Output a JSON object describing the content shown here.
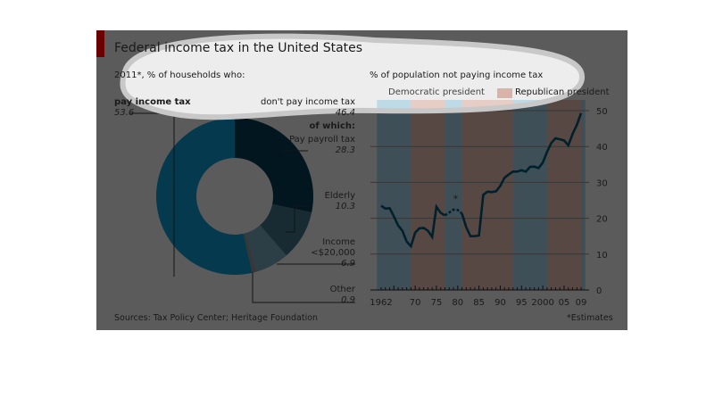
{
  "title": "Federal income tax in the United States",
  "left_subtitle": "2011*, % of households who:",
  "right_subtitle": "% of population not paying income tax",
  "source": "Sources: Tax Policy Center; Heritage Foundation",
  "footnote": "*Estimates",
  "colors": {
    "accent": "#b00000",
    "pay": "#0a8fc4",
    "payroll": "#06384e",
    "elderly": "#3d6d80",
    "income": "#6e9db0",
    "other": "#8a8a8a",
    "democratic": "#9cc6da",
    "republican": "#d9b3a8",
    "line": "#00506c"
  },
  "chart_data": [
    {
      "type": "pie",
      "variant": "donut",
      "slices": [
        {
          "label": "Pay payroll tax",
          "value": 28.3,
          "group": "don't pay income tax"
        },
        {
          "label": "Elderly",
          "value": 10.3,
          "group": "don't pay income tax"
        },
        {
          "label": "Income <$20,000",
          "value": 6.9,
          "group": "don't pay income tax"
        },
        {
          "label": "Other",
          "value": 0.9,
          "group": "don't pay income tax"
        },
        {
          "label": "pay income tax",
          "value": 53.6
        }
      ],
      "labels": {
        "pay": "pay income tax",
        "pay_value": "53.6",
        "dont": "don't pay income tax",
        "dont_value": "46.4",
        "of_which": "of which:",
        "payroll": "Pay payroll tax",
        "payroll_value": "28.3",
        "elderly": "Elderly",
        "elderly_value": "10.3",
        "income1": "Income",
        "income2": "<$20,000",
        "income_value": "6.9",
        "other": "Other",
        "other_value": "0.9"
      }
    },
    {
      "type": "line",
      "ylim": [
        0,
        50
      ],
      "yticks": [
        0,
        10,
        20,
        30,
        40,
        50
      ],
      "xticks": [
        "1962",
        "70",
        "75",
        "80",
        "85",
        "90",
        "95",
        "2000",
        "05",
        "09"
      ],
      "xtick_years": [
        1962,
        1970,
        1975,
        1980,
        1985,
        1990,
        1995,
        2000,
        2005,
        2009
      ],
      "legend": [
        "Democratic president",
        "Republican president"
      ],
      "annotation": "*",
      "bands": [
        {
          "party": "democratic",
          "from": 1961,
          "to": 1969
        },
        {
          "party": "republican",
          "from": 1969,
          "to": 1977
        },
        {
          "party": "democratic",
          "from": 1977,
          "to": 1981
        },
        {
          "party": "republican",
          "from": 1981,
          "to": 1993
        },
        {
          "party": "democratic",
          "from": 1993,
          "to": 2001
        },
        {
          "party": "republican",
          "from": 2001,
          "to": 2009
        },
        {
          "party": "democratic",
          "from": 2009,
          "to": 2010
        }
      ],
      "x": [
        1962,
        1963,
        1964,
        1965,
        1966,
        1967,
        1968,
        1969,
        1970,
        1971,
        1972,
        1973,
        1974,
        1975,
        1976,
        1977,
        1978,
        1979,
        1980,
        1981,
        1982,
        1983,
        1984,
        1985,
        1986,
        1987,
        1988,
        1989,
        1990,
        1991,
        1992,
        1993,
        1994,
        1995,
        1996,
        1997,
        1998,
        1999,
        2000,
        2001,
        2002,
        2003,
        2004,
        2005,
        2006,
        2007,
        2008,
        2009
      ],
      "y": [
        23.5,
        22.7,
        22.8,
        20.5,
        18,
        16.5,
        13.5,
        12.2,
        16,
        17.2,
        17.3,
        16.5,
        14.8,
        23.2,
        21.5,
        20.8,
        21.6,
        22.4,
        22.3,
        21.3,
        17.5,
        15,
        15,
        15.2,
        26.5,
        27.4,
        27.3,
        27.5,
        29,
        31.3,
        32.2,
        33,
        33,
        33.4,
        33,
        34.3,
        34.4,
        34,
        35.5,
        38.5,
        41,
        42.3,
        42,
        41.7,
        40.3,
        43.5,
        46,
        49.3
      ],
      "estimated_years": [
        1978,
        1979,
        1980
      ]
    }
  ]
}
